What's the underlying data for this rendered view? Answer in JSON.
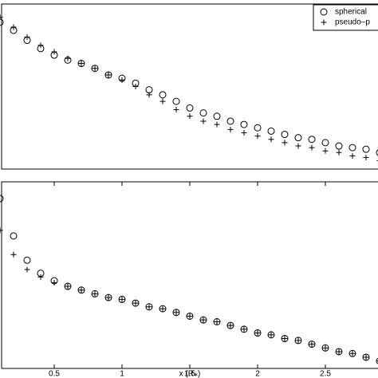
{
  "chart_data": [
    {
      "type": "scatter",
      "x": [
        0.1,
        0.2,
        0.3,
        0.4,
        0.5,
        0.6,
        0.7,
        0.8,
        0.9,
        1.0,
        1.1,
        1.2,
        1.3,
        1.4,
        1.5,
        1.6,
        1.7,
        1.8,
        1.9,
        2.0,
        2.1,
        2.2,
        2.3,
        2.4,
        2.5,
        2.6,
        2.7,
        2.8,
        2.9
      ],
      "series": [
        {
          "name": "spherical",
          "marker": "circle",
          "color": "#000000",
          "values": [
            0.89,
            0.84,
            0.78,
            0.73,
            0.69,
            0.66,
            0.64,
            0.61,
            0.57,
            0.55,
            0.52,
            0.48,
            0.45,
            0.41,
            0.37,
            0.34,
            0.32,
            0.29,
            0.27,
            0.25,
            0.23,
            0.21,
            0.19,
            0.18,
            0.16,
            0.14,
            0.13,
            0.12,
            0.1
          ]
        },
        {
          "name": "pseudo–p",
          "marker": "plus",
          "color": "#000000",
          "values": [
            0.92,
            0.86,
            0.8,
            0.75,
            0.71,
            0.67,
            0.64,
            0.61,
            0.57,
            0.54,
            0.5,
            0.45,
            0.41,
            0.36,
            0.32,
            0.29,
            0.27,
            0.24,
            0.22,
            0.2,
            0.18,
            0.16,
            0.14,
            0.13,
            0.11,
            0.1,
            0.08,
            0.07,
            0.05
          ]
        }
      ],
      "xlim": [
        0.1,
        2.9
      ],
      "ylim": [
        0,
        1
      ],
      "legend": "upper right"
    },
    {
      "type": "scatter",
      "xlabel": "x (R⁎)",
      "x": [
        0.1,
        0.2,
        0.3,
        0.4,
        0.5,
        0.6,
        0.7,
        0.8,
        0.9,
        1.0,
        1.1,
        1.2,
        1.3,
        1.4,
        1.5,
        1.6,
        1.7,
        1.8,
        1.9,
        2.0,
        2.1,
        2.2,
        2.3,
        2.4,
        2.5,
        2.6,
        2.7,
        2.8,
        2.9
      ],
      "series": [
        {
          "name": "spherical",
          "marker": "circle",
          "color": "#000000",
          "values": [
            0.91,
            0.71,
            0.58,
            0.51,
            0.47,
            0.44,
            0.42,
            0.4,
            0.38,
            0.37,
            0.35,
            0.33,
            0.32,
            0.3,
            0.28,
            0.26,
            0.25,
            0.23,
            0.21,
            0.19,
            0.18,
            0.16,
            0.15,
            0.13,
            0.11,
            0.09,
            0.08,
            0.06,
            0.04
          ]
        },
        {
          "name": "pseudo–p",
          "marker": "plus",
          "color": "#000000",
          "values": [
            0.74,
            0.61,
            0.53,
            0.49,
            0.46,
            0.44,
            0.42,
            0.4,
            0.38,
            0.37,
            0.35,
            0.33,
            0.32,
            0.3,
            0.28,
            0.26,
            0.25,
            0.23,
            0.21,
            0.19,
            0.18,
            0.16,
            0.15,
            0.13,
            0.11,
            0.09,
            0.08,
            0.06,
            0.04
          ]
        }
      ],
      "xlim": [
        0.1,
        2.9
      ],
      "ylim": [
        0,
        1
      ],
      "xticks": [
        0.5,
        1,
        1.5,
        2,
        2.5
      ]
    }
  ]
}
